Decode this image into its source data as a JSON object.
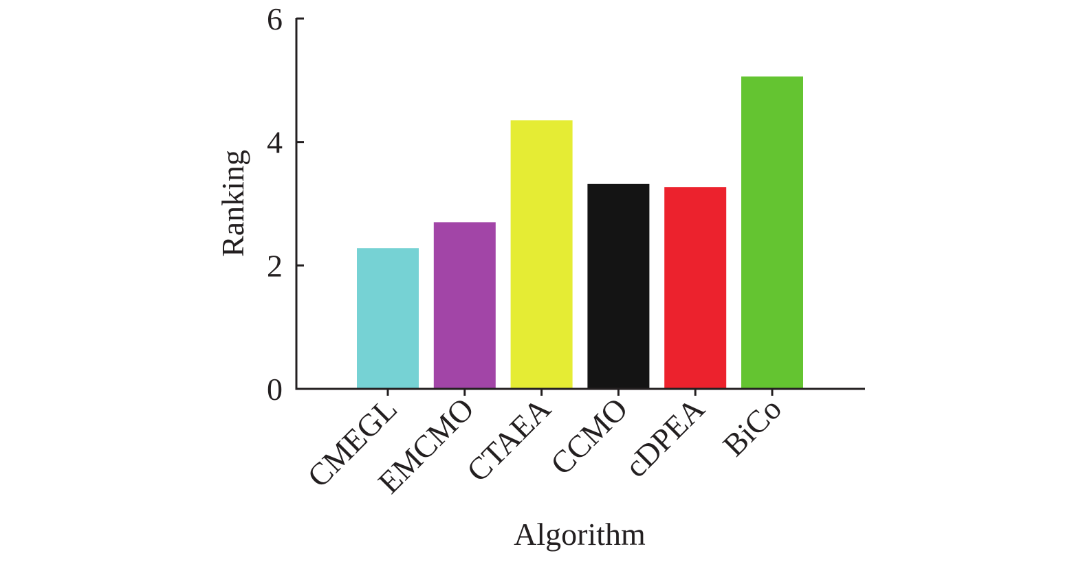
{
  "chart_data": {
    "type": "bar",
    "categories": [
      "CMEGL",
      "EMCMO",
      "CTAEA",
      "CCMO",
      "cDPEA",
      "BiCo"
    ],
    "values": [
      2.28,
      2.7,
      4.35,
      3.32,
      3.27,
      5.06
    ],
    "colors": [
      "#76d2d4",
      "#a245a7",
      "#e5ec34",
      "#141414",
      "#ec222d",
      "#64c431"
    ],
    "xlabel": "Algorithm",
    "ylabel": "Ranking",
    "ylim": [
      0,
      6
    ],
    "yticks": [
      "0",
      "2",
      "4",
      "6"
    ],
    "grid": false,
    "legend": "none"
  }
}
